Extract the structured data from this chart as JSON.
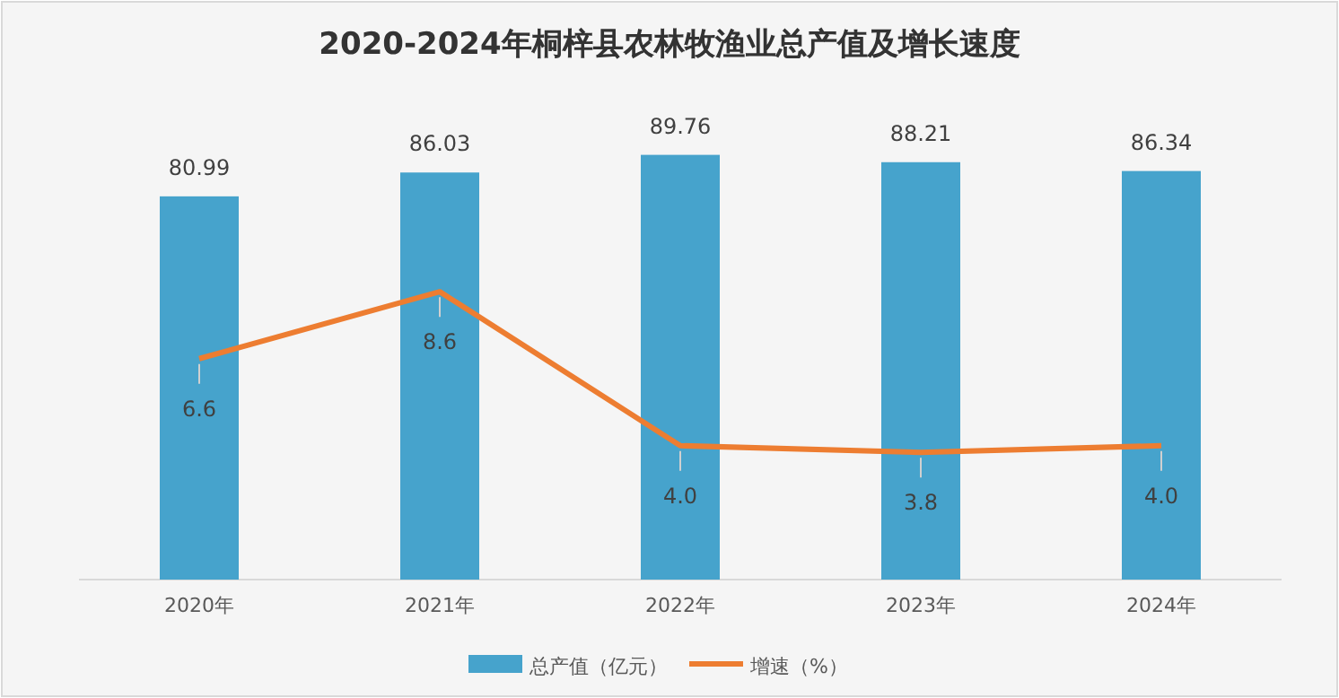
{
  "chart_data": {
    "type": "bar",
    "title": "2020-2024年桐梓县农林牧渔业总产值及增长速度",
    "categories": [
      "2020年",
      "2021年",
      "2022年",
      "2023年",
      "2024年"
    ],
    "series": [
      {
        "name": "总产值（亿元）",
        "color": "#46a3cc",
        "values": [
          80.99,
          86.03,
          89.76,
          88.21,
          86.34
        ]
      },
      {
        "name": "增速（%）",
        "type": "line",
        "axis": "y2",
        "color": "#ed7d31",
        "values": [
          6.6,
          8.6,
          4.0,
          3.8,
          4.0
        ],
        "value_labels": [
          "6.6",
          "8.6",
          "4.0",
          "3.8",
          "4.0"
        ]
      }
    ],
    "tick_labels": "x",
    "data_labels": true,
    "legend": "bottom",
    "grid": false,
    "marker": "none"
  }
}
